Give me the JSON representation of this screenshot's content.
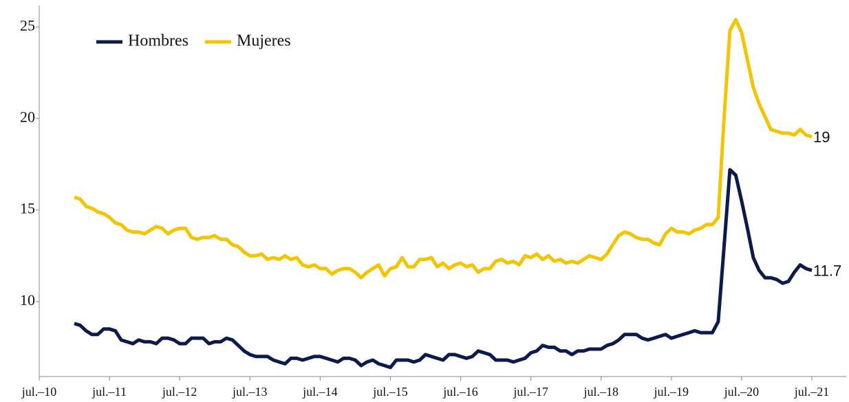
{
  "chart_data": {
    "type": "line",
    "categories": [
      "jul.–10",
      null,
      null,
      null,
      null,
      null,
      null,
      null,
      null,
      null,
      null,
      null,
      "jul.–11",
      null,
      null,
      null,
      null,
      null,
      null,
      null,
      null,
      null,
      null,
      null,
      "jul.–12",
      null,
      null,
      null,
      null,
      null,
      null,
      null,
      null,
      null,
      null,
      null,
      "jul.–13",
      null,
      null,
      null,
      null,
      null,
      null,
      null,
      null,
      null,
      null,
      null,
      "jul.–14",
      null,
      null,
      null,
      null,
      null,
      null,
      null,
      null,
      null,
      null,
      null,
      "jul.–15",
      null,
      null,
      null,
      null,
      null,
      null,
      null,
      null,
      null,
      null,
      null,
      "jul.–16",
      null,
      null,
      null,
      null,
      null,
      null,
      null,
      null,
      null,
      null,
      null,
      "jul.–17",
      null,
      null,
      null,
      null,
      null,
      null,
      null,
      null,
      null,
      null,
      null,
      "jul.–18",
      null,
      null,
      null,
      null,
      null,
      null,
      null,
      null,
      null,
      null,
      null,
      "jul.–19",
      null,
      null,
      null,
      null,
      null,
      null,
      null,
      null,
      null,
      null,
      null,
      "jul.–20",
      null,
      null,
      null,
      null,
      null,
      null,
      null,
      null,
      null,
      null,
      null,
      "jul.–21"
    ],
    "series": [
      {
        "name": "Hombres",
        "color": "#0d1b4c",
        "values": [
          null,
          null,
          null,
          null,
          null,
          null,
          8.8,
          8.7,
          8.4,
          8.2,
          8.2,
          8.5,
          8.5,
          8.4,
          7.9,
          7.8,
          7.7,
          7.9,
          7.8,
          7.8,
          7.7,
          8.0,
          8.0,
          7.9,
          7.7,
          7.7,
          8.0,
          8.0,
          8.0,
          7.7,
          7.8,
          7.8,
          8.0,
          7.9,
          7.6,
          7.3,
          7.1,
          7.0,
          7.0,
          7.0,
          6.8,
          6.7,
          6.6,
          6.9,
          6.9,
          6.8,
          6.9,
          7.0,
          7.0,
          6.9,
          6.8,
          6.7,
          6.9,
          6.9,
          6.8,
          6.5,
          6.7,
          6.8,
          6.6,
          6.5,
          6.4,
          6.8,
          6.8,
          6.8,
          6.7,
          6.8,
          7.1,
          7.0,
          6.9,
          6.8,
          7.1,
          7.1,
          7.0,
          6.9,
          7.0,
          7.3,
          7.2,
          7.1,
          6.8,
          6.8,
          6.8,
          6.7,
          6.8,
          6.9,
          7.2,
          7.3,
          7.6,
          7.5,
          7.5,
          7.3,
          7.3,
          7.1,
          7.3,
          7.3,
          7.4,
          7.4,
          7.4,
          7.6,
          7.7,
          7.9,
          8.2,
          8.2,
          8.2,
          8.0,
          7.9,
          8.0,
          8.1,
          8.2,
          8.0,
          8.1,
          8.2,
          8.3,
          8.4,
          8.3,
          8.3,
          8.3,
          8.9,
          13.0,
          17.2,
          16.9,
          15.5,
          14.0,
          12.4,
          11.7,
          11.3,
          11.3,
          11.2,
          11.0,
          11.1,
          11.6,
          12.0,
          11.8,
          11.7
        ]
      },
      {
        "name": "Mujeres",
        "color": "#f2c500",
        "values": [
          null,
          null,
          null,
          null,
          null,
          null,
          15.7,
          15.6,
          15.2,
          15.1,
          14.9,
          14.8,
          14.6,
          14.3,
          14.2,
          13.9,
          13.8,
          13.8,
          13.7,
          13.9,
          14.1,
          14.0,
          13.7,
          13.9,
          14.0,
          14.0,
          13.5,
          13.4,
          13.5,
          13.5,
          13.6,
          13.4,
          13.4,
          13.1,
          13.0,
          12.7,
          12.5,
          12.5,
          12.6,
          12.3,
          12.4,
          12.3,
          12.5,
          12.3,
          12.4,
          12.0,
          11.9,
          12.0,
          11.8,
          11.8,
          11.5,
          11.7,
          11.8,
          11.8,
          11.6,
          11.3,
          11.6,
          11.8,
          12.0,
          11.4,
          11.8,
          11.9,
          12.4,
          11.9,
          11.9,
          12.3,
          12.3,
          12.4,
          11.9,
          12.1,
          11.8,
          12.0,
          12.1,
          11.9,
          12.0,
          11.6,
          11.8,
          11.8,
          12.2,
          12.3,
          12.1,
          12.2,
          12.0,
          12.5,
          12.4,
          12.6,
          12.3,
          12.5,
          12.2,
          12.3,
          12.1,
          12.2,
          12.1,
          12.3,
          12.5,
          12.4,
          12.3,
          12.6,
          13.1,
          13.6,
          13.8,
          13.7,
          13.5,
          13.4,
          13.4,
          13.2,
          13.1,
          13.7,
          14.0,
          13.8,
          13.8,
          13.7,
          13.9,
          14.0,
          14.2,
          14.2,
          14.6,
          20.0,
          24.8,
          25.4,
          24.7,
          23.2,
          21.7,
          20.8,
          20.1,
          19.4,
          19.3,
          19.2,
          19.2,
          19.1,
          19.4,
          19.1,
          19.0
        ]
      }
    ],
    "ylim": [
      5.9,
      26.1
    ],
    "yticks": [
      10,
      15,
      20,
      25
    ],
    "legend": "top-left"
  }
}
